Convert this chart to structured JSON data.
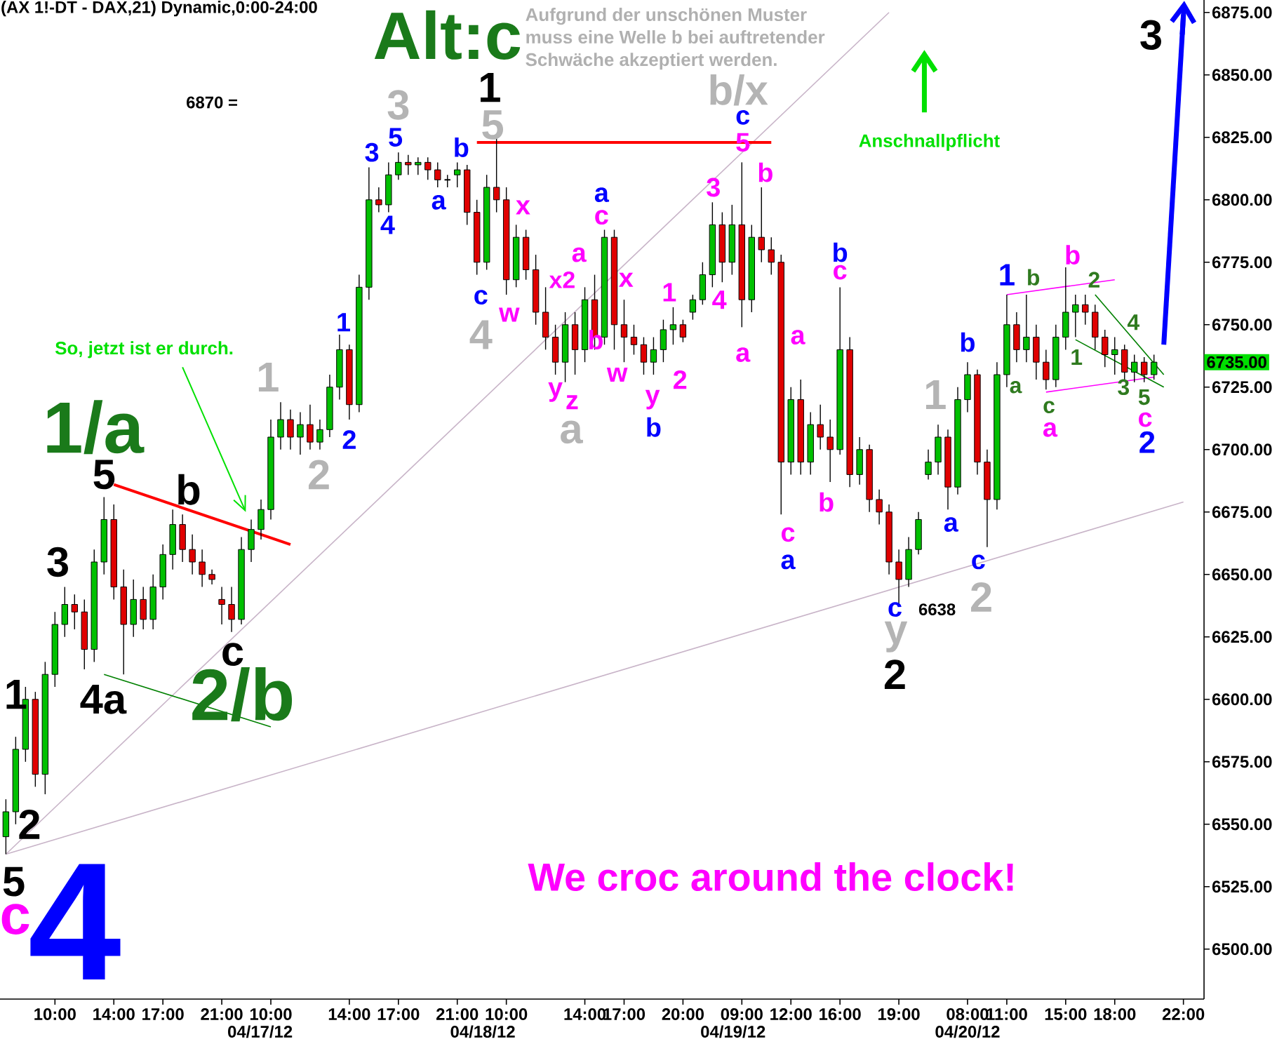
{
  "chart_data": {
    "type": "candlestick",
    "title": "(AX 1!-DT - DAX,21) Dynamic,0:00-24:00",
    "categories": [
      null,
      null,
      null,
      null,
      null,
      "10:00",
      null,
      null,
      null,
      null,
      null,
      "14:00",
      null,
      null,
      null,
      null,
      "17:00",
      null,
      null,
      null,
      null,
      null,
      "21:00",
      null,
      null,
      null,
      null,
      "10:00",
      null,
      null,
      null,
      null,
      null,
      null,
      null,
      "14:00",
      null,
      null,
      null,
      null,
      "17:00",
      null,
      null,
      null,
      null,
      null,
      "21:00",
      null,
      null,
      null,
      null,
      "10:00",
      null,
      null,
      null,
      null,
      null,
      null,
      null,
      "14:00",
      null,
      null,
      null,
      "17:00",
      null,
      null,
      null,
      null,
      null,
      "20:00",
      null,
      null,
      null,
      null,
      null,
      "09:00",
      null,
      null,
      null,
      null,
      "12:00",
      null,
      null,
      null,
      null,
      "16:00",
      null,
      null,
      null,
      null,
      null,
      "19:00",
      null,
      null,
      null,
      null,
      null,
      null,
      "08:00",
      null,
      null,
      null,
      "11:00",
      null,
      null,
      null,
      null,
      null,
      "15:00",
      null,
      null,
      null,
      null,
      "18:00",
      null,
      null,
      null,
      null,
      null,
      null,
      "22:00"
    ],
    "ohlc": [
      [
        6545,
        6560,
        6538,
        6555
      ],
      [
        6555,
        6585,
        6550,
        6580
      ],
      [
        6580,
        6605,
        6575,
        6600
      ],
      [
        6600,
        6603,
        6565,
        6570
      ],
      [
        6570,
        6615,
        6562,
        6610
      ],
      [
        6610,
        6635,
        6605,
        6630
      ],
      [
        6630,
        6645,
        6625,
        6638
      ],
      [
        6638,
        6642,
        6628,
        6635
      ],
      [
        6635,
        6640,
        6612,
        6620
      ],
      [
        6620,
        6660,
        6615,
        6655
      ],
      [
        6655,
        6681,
        6650,
        6672
      ],
      [
        6672,
        6678,
        6640,
        6645
      ],
      [
        6645,
        6652,
        6610,
        6630
      ],
      [
        6630,
        6648,
        6625,
        6640
      ],
      [
        6640,
        6645,
        6628,
        6632
      ],
      [
        6632,
        6650,
        6628,
        6645
      ],
      [
        6645,
        6662,
        6640,
        6658
      ],
      [
        6658,
        6676,
        6652,
        6670
      ],
      [
        6670,
        6674,
        6655,
        6660
      ],
      [
        6660,
        6666,
        6650,
        6655
      ],
      [
        6655,
        6660,
        6645,
        6650
      ],
      [
        6650,
        6652,
        6646,
        6648
      ],
      [
        6640,
        6645,
        6630,
        6638
      ],
      [
        6638,
        6645,
        6627,
        6632
      ],
      [
        6632,
        6665,
        6630,
        6660
      ],
      [
        6660,
        6672,
        6655,
        6668
      ],
      [
        6668,
        6680,
        6664,
        6676
      ],
      [
        6676,
        6712,
        6672,
        6705
      ],
      [
        6705,
        6719,
        6700,
        6712
      ],
      [
        6712,
        6716,
        6700,
        6705
      ],
      [
        6705,
        6715,
        6698,
        6710
      ],
      [
        6710,
        6718,
        6700,
        6703
      ],
      [
        6703,
        6712,
        6700,
        6708
      ],
      [
        6708,
        6730,
        6705,
        6725
      ],
      [
        6725,
        6746,
        6720,
        6740
      ],
      [
        6740,
        6742,
        6712,
        6718
      ],
      [
        6718,
        6770,
        6715,
        6765
      ],
      [
        6765,
        6813,
        6760,
        6800
      ],
      [
        6800,
        6805,
        6795,
        6798
      ],
      [
        6798,
        6815,
        6795,
        6810
      ],
      [
        6810,
        6819,
        6808,
        6815
      ],
      [
        6815,
        6818,
        6810,
        6814
      ],
      [
        6814,
        6817,
        6810,
        6815
      ],
      [
        6815,
        6817,
        6808,
        6812
      ],
      [
        6812,
        6815,
        6805,
        6808
      ],
      [
        6808,
        6810,
        6805,
        6808
      ],
      [
        6810,
        6815,
        6805,
        6812
      ],
      [
        6812,
        6814,
        6790,
        6795
      ],
      [
        6795,
        6800,
        6770,
        6775
      ],
      [
        6775,
        6810,
        6772,
        6805
      ],
      [
        6805,
        6825,
        6795,
        6800
      ],
      [
        6800,
        6805,
        6762,
        6768
      ],
      [
        6768,
        6790,
        6765,
        6785
      ],
      [
        6785,
        6788,
        6768,
        6772
      ],
      [
        6772,
        6778,
        6750,
        6755
      ],
      [
        6755,
        6765,
        6740,
        6745
      ],
      [
        6745,
        6750,
        6730,
        6735
      ],
      [
        6735,
        6755,
        6727,
        6750
      ],
      [
        6750,
        6755,
        6730,
        6740
      ],
      [
        6740,
        6765,
        6735,
        6760
      ],
      [
        6760,
        6770,
        6740,
        6745
      ],
      [
        6745,
        6788,
        6742,
        6785
      ],
      [
        6785,
        6788,
        6740,
        6750
      ],
      [
        6750,
        6760,
        6735,
        6745
      ],
      [
        6745,
        6750,
        6738,
        6742
      ],
      [
        6742,
        6745,
        6730,
        6735
      ],
      [
        6735,
        6745,
        6730,
        6740
      ],
      [
        6740,
        6752,
        6735,
        6748
      ],
      [
        6748,
        6757,
        6742,
        6750
      ],
      [
        6750,
        6752,
        6743,
        6745
      ],
      [
        6755,
        6762,
        6752,
        6760
      ],
      [
        6760,
        6775,
        6758,
        6770
      ],
      [
        6770,
        6799,
        6765,
        6790
      ],
      [
        6790,
        6795,
        6767,
        6775
      ],
      [
        6775,
        6798,
        6770,
        6790
      ],
      [
        6790,
        6815,
        6749,
        6760
      ],
      [
        6760,
        6790,
        6755,
        6785
      ],
      [
        6785,
        6805,
        6775,
        6780
      ],
      [
        6780,
        6785,
        6770,
        6775
      ],
      [
        6775,
        6778,
        6674,
        6695
      ],
      [
        6695,
        6725,
        6690,
        6720
      ],
      [
        6720,
        6728,
        6690,
        6695
      ],
      [
        6695,
        6715,
        6690,
        6710
      ],
      [
        6710,
        6718,
        6700,
        6705
      ],
      [
        6705,
        6712,
        6687,
        6700
      ],
      [
        6700,
        6765,
        6698,
        6740
      ],
      [
        6740,
        6745,
        6685,
        6690
      ],
      [
        6690,
        6705,
        6686,
        6700
      ],
      [
        6700,
        6702,
        6675,
        6680
      ],
      [
        6680,
        6684,
        6670,
        6675
      ],
      [
        6675,
        6678,
        6650,
        6655
      ],
      [
        6655,
        6660,
        6638,
        6648
      ],
      [
        6648,
        6665,
        6645,
        6660
      ],
      [
        6660,
        6675,
        6658,
        6672
      ],
      [
        6690,
        6700,
        6688,
        6695
      ],
      [
        6695,
        6710,
        6690,
        6705
      ],
      [
        6705,
        6708,
        6676,
        6685
      ],
      [
        6685,
        6725,
        6682,
        6720
      ],
      [
        6720,
        6735,
        6715,
        6730
      ],
      [
        6730,
        6732,
        6690,
        6695
      ],
      [
        6695,
        6700,
        6661,
        6680
      ],
      [
        6680,
        6735,
        6676,
        6730
      ],
      [
        6730,
        6762,
        6725,
        6750
      ],
      [
        6750,
        6755,
        6735,
        6740
      ],
      [
        6740,
        6762,
        6735,
        6745
      ],
      [
        6745,
        6750,
        6728,
        6735
      ],
      [
        6735,
        6740,
        6724,
        6728
      ],
      [
        6728,
        6750,
        6725,
        6745
      ],
      [
        6745,
        6773,
        6740,
        6755
      ],
      [
        6755,
        6762,
        6745,
        6758
      ],
      [
        6758,
        6762,
        6750,
        6755
      ],
      [
        6755,
        6758,
        6740,
        6745
      ],
      [
        6745,
        6748,
        6733,
        6738
      ],
      [
        6738,
        6745,
        6730,
        6740
      ],
      [
        6740,
        6742,
        6728,
        6731
      ],
      [
        6731,
        6738,
        6727,
        6735
      ],
      [
        6735,
        6737,
        6727,
        6730
      ],
      [
        6730,
        6738,
        6728,
        6735
      ],
      null,
      null,
      null
    ],
    "ylim": [
      6480,
      6880
    ],
    "yticks": [
      {
        "value": 6500,
        "label": "6500.00"
      },
      {
        "value": 6525,
        "label": "6525.00"
      },
      {
        "value": 6550,
        "label": "6550.00"
      },
      {
        "value": 6575,
        "label": "6575.00"
      },
      {
        "value": 6600,
        "label": "6600.00"
      },
      {
        "value": 6625,
        "label": "6625.00"
      },
      {
        "value": 6650,
        "label": "6650.00"
      },
      {
        "value": 6675,
        "label": "6675.00"
      },
      {
        "value": 6700,
        "label": "6700.00"
      },
      {
        "value": 6725,
        "label": "6725.00"
      },
      {
        "value": 6750,
        "label": "6750.00"
      },
      {
        "value": 6775,
        "label": "6775.00"
      },
      {
        "value": 6800,
        "label": "6800.00"
      },
      {
        "value": 6825,
        "label": "6825.00"
      },
      {
        "value": 6850,
        "label": "6850.00"
      },
      {
        "value": 6875,
        "label": "6875.00"
      }
    ],
    "series": [
      {
        "type": "line",
        "color": "#c8b4c8",
        "values": [
          6538,
          null,
          null,
          null,
          null,
          null,
          null,
          null,
          null,
          null,
          null,
          null,
          null,
          null,
          null,
          null,
          null,
          null,
          null,
          null,
          null,
          null,
          null,
          null,
          null,
          null,
          null,
          null,
          null,
          null,
          null,
          null,
          null,
          null,
          null,
          null,
          null,
          null,
          null,
          null,
          null,
          null,
          null,
          null,
          null,
          null,
          null,
          null,
          null,
          null,
          null,
          null,
          null,
          null,
          null,
          null,
          null,
          null,
          null,
          null,
          null,
          null,
          null,
          null,
          null,
          null,
          null,
          null,
          null,
          null,
          null,
          null,
          null,
          null,
          null,
          null,
          null,
          null,
          null,
          null,
          null,
          null,
          null,
          null,
          null,
          null,
          null,
          null,
          null,
          null,
          6875,
          null,
          null,
          null,
          null,
          null,
          null,
          null,
          null,
          null,
          null,
          null,
          null,
          null,
          null,
          null,
          null,
          null,
          null,
          null,
          null,
          null,
          null,
          null,
          null,
          null,
          null,
          null,
          null,
          null,
          null
        ]
      },
      {
        "type": "line",
        "color": "#c8b4c8",
        "values": [
          6538,
          null,
          null,
          null,
          null,
          null,
          null,
          null,
          null,
          null,
          null,
          null,
          null,
          null,
          null,
          null,
          null,
          null,
          null,
          null,
          null,
          null,
          null,
          null,
          null,
          null,
          null,
          null,
          null,
          null,
          null,
          null,
          null,
          null,
          null,
          null,
          null,
          null,
          null,
          null,
          null,
          null,
          null,
          null,
          null,
          null,
          null,
          null,
          null,
          null,
          null,
          null,
          null,
          null,
          null,
          null,
          null,
          null,
          null,
          null,
          null,
          null,
          null,
          null,
          null,
          null,
          null,
          null,
          null,
          null,
          null,
          null,
          null,
          null,
          null,
          null,
          null,
          null,
          null,
          null,
          null,
          null,
          null,
          null,
          null,
          null,
          null,
          null,
          null,
          null,
          null,
          null,
          null,
          null,
          null,
          null,
          null,
          null,
          null,
          null,
          null,
          null,
          null,
          null,
          null,
          null,
          null,
          null,
          null,
          null,
          null,
          null,
          null,
          null,
          null,
          null,
          null,
          null,
          null,
          null,
          6679
        ]
      },
      {
        "type": "line",
        "color": "#ff0000",
        "values": [
          null,
          null,
          null,
          null,
          null,
          null,
          null,
          null,
          null,
          null,
          null,
          null,
          null,
          null,
          null,
          null,
          null,
          null,
          null,
          null,
          null,
          null,
          null,
          null,
          null,
          null,
          null,
          null,
          null,
          null,
          null,
          null,
          null,
          null,
          null,
          null,
          null,
          null,
          null,
          null,
          null,
          null,
          null,
          null,
          null,
          null,
          null,
          null,
          6823,
          null,
          null,
          null,
          null,
          null,
          null,
          null,
          null,
          null,
          null,
          null,
          null,
          null,
          null,
          null,
          null,
          null,
          null,
          null,
          null,
          null,
          null,
          null,
          null,
          null,
          null,
          null,
          null,
          null,
          6823,
          null,
          null,
          null,
          null,
          null,
          null,
          null,
          null,
          null,
          null,
          null,
          null,
          null,
          null,
          null,
          null,
          null,
          null,
          null,
          null,
          null,
          null,
          null,
          null,
          null,
          null,
          null,
          null,
          null,
          null,
          null,
          null,
          null,
          null,
          null,
          null,
          null,
          null,
          null,
          null,
          null,
          null
        ]
      },
      {
        "type": "line",
        "color": "#ff0000",
        "values": [
          null,
          null,
          null,
          null,
          null,
          null,
          null,
          null,
          null,
          null,
          null,
          6686,
          null,
          null,
          null,
          null,
          null,
          null,
          null,
          null,
          null,
          null,
          null,
          null,
          null,
          null,
          null,
          null,
          null,
          6662,
          null,
          null,
          null,
          null,
          null,
          null,
          null,
          null,
          null,
          null,
          null,
          null,
          null,
          null,
          null,
          null,
          null,
          null,
          null,
          null,
          null,
          null,
          null,
          null,
          null,
          null,
          null,
          null,
          null,
          null,
          null,
          null,
          null,
          null,
          null,
          null,
          null,
          null,
          null,
          null,
          null,
          null,
          null,
          null,
          null,
          null,
          null,
          null,
          null,
          null,
          null,
          null,
          null,
          null,
          null,
          null,
          null,
          null,
          null,
          null,
          null,
          null,
          null,
          null,
          null,
          null,
          null,
          null,
          null,
          null,
          null,
          null,
          null,
          null,
          null,
          null,
          null,
          null,
          null,
          null,
          null,
          null,
          null,
          null,
          null,
          null,
          null,
          null,
          null,
          null,
          null
        ]
      },
      {
        "type": "line",
        "color": "#008000",
        "values": [
          null,
          null,
          null,
          null,
          null,
          null,
          null,
          null,
          null,
          null,
          6610,
          null,
          null,
          null,
          null,
          null,
          null,
          null,
          null,
          null,
          null,
          null,
          null,
          null,
          null,
          null,
          null,
          6589,
          null,
          null,
          null,
          null,
          null,
          null,
          null,
          null,
          null,
          null,
          null,
          null,
          null,
          null,
          null,
          null,
          null,
          null,
          null,
          null,
          null,
          null,
          null,
          null,
          null,
          null,
          null,
          null,
          null,
          null,
          null,
          null,
          null,
          null,
          null,
          null,
          null,
          null,
          null,
          null,
          null,
          null,
          null,
          null,
          null,
          null,
          null,
          null,
          null,
          null,
          null,
          null,
          null,
          null,
          null,
          null,
          null,
          null,
          null,
          null,
          null,
          null,
          null,
          null,
          null,
          null,
          null,
          null,
          null,
          null,
          null,
          null,
          null,
          null,
          null,
          null,
          null,
          null,
          null,
          null,
          null,
          null,
          null,
          null,
          null,
          null,
          null,
          null,
          null,
          null,
          null,
          null,
          null
        ]
      },
      {
        "type": "line",
        "color": "#ff00ff",
        "values": [
          null,
          null,
          null,
          null,
          null,
          null,
          null,
          null,
          null,
          null,
          null,
          null,
          null,
          null,
          null,
          null,
          null,
          null,
          null,
          null,
          null,
          null,
          null,
          null,
          null,
          null,
          null,
          null,
          null,
          null,
          null,
          null,
          null,
          null,
          null,
          null,
          null,
          null,
          null,
          null,
          null,
          null,
          null,
          null,
          null,
          null,
          null,
          null,
          null,
          null,
          null,
          null,
          null,
          null,
          null,
          null,
          null,
          null,
          null,
          null,
          null,
          null,
          null,
          null,
          null,
          null,
          null,
          null,
          null,
          null,
          null,
          null,
          null,
          null,
          null,
          null,
          null,
          null,
          null,
          null,
          null,
          null,
          null,
          null,
          null,
          null,
          null,
          null,
          null,
          null,
          null,
          null,
          null,
          null,
          null,
          null,
          null,
          null,
          null,
          null,
          null,
          null,
          6762,
          null,
          null,
          null,
          null,
          null,
          null,
          null,
          null,
          null,
          null,
          6768,
          null,
          null,
          null,
          null,
          null,
          null,
          null
        ]
      },
      {
        "type": "line",
        "color": "#ff00ff",
        "values": [
          null,
          null,
          null,
          null,
          null,
          null,
          null,
          null,
          null,
          null,
          null,
          null,
          null,
          null,
          null,
          null,
          null,
          null,
          null,
          null,
          null,
          null,
          null,
          null,
          null,
          null,
          null,
          null,
          null,
          null,
          null,
          null,
          null,
          null,
          null,
          null,
          null,
          null,
          null,
          null,
          null,
          null,
          null,
          null,
          null,
          null,
          null,
          null,
          null,
          null,
          null,
          null,
          null,
          null,
          null,
          null,
          null,
          null,
          null,
          null,
          null,
          null,
          null,
          null,
          null,
          null,
          null,
          null,
          null,
          null,
          null,
          null,
          null,
          null,
          null,
          null,
          null,
          null,
          null,
          null,
          null,
          null,
          null,
          null,
          null,
          null,
          null,
          null,
          null,
          null,
          null,
          null,
          null,
          null,
          null,
          null,
          null,
          null,
          null,
          null,
          null,
          null,
          null,
          null,
          null,
          null,
          6723,
          null,
          null,
          null,
          null,
          null,
          null,
          null,
          null,
          null,
          null,
          6729,
          null,
          null,
          null
        ]
      },
      {
        "type": "line",
        "color": "#008000",
        "values": [
          null,
          null,
          null,
          null,
          null,
          null,
          null,
          null,
          null,
          null,
          null,
          null,
          null,
          null,
          null,
          null,
          null,
          null,
          null,
          null,
          null,
          null,
          null,
          null,
          null,
          null,
          null,
          null,
          null,
          null,
          null,
          null,
          null,
          null,
          null,
          null,
          null,
          null,
          null,
          null,
          null,
          null,
          null,
          null,
          null,
          null,
          null,
          null,
          null,
          null,
          null,
          null,
          null,
          null,
          null,
          null,
          null,
          null,
          null,
          null,
          null,
          null,
          null,
          null,
          null,
          null,
          null,
          null,
          null,
          null,
          null,
          null,
          null,
          null,
          null,
          null,
          null,
          null,
          null,
          null,
          null,
          null,
          null,
          null,
          null,
          null,
          null,
          null,
          null,
          null,
          null,
          null,
          null,
          null,
          null,
          null,
          null,
          null,
          null,
          null,
          null,
          null,
          null,
          null,
          null,
          null,
          null,
          null,
          null,
          null,
          null,
          6762,
          null,
          null,
          null,
          null,
          null,
          null,
          6730,
          null,
          null
        ]
      },
      {
        "type": "line",
        "color": "#008000",
        "values": [
          null,
          null,
          null,
          null,
          null,
          null,
          null,
          null,
          null,
          null,
          null,
          null,
          null,
          null,
          null,
          null,
          null,
          null,
          null,
          null,
          null,
          null,
          null,
          null,
          null,
          null,
          null,
          null,
          null,
          null,
          null,
          null,
          null,
          null,
          null,
          null,
          null,
          null,
          null,
          null,
          null,
          null,
          null,
          null,
          null,
          null,
          null,
          null,
          null,
          null,
          null,
          null,
          null,
          null,
          null,
          null,
          null,
          null,
          null,
          null,
          null,
          null,
          null,
          null,
          null,
          null,
          null,
          null,
          null,
          null,
          null,
          null,
          null,
          null,
          null,
          null,
          null,
          null,
          null,
          null,
          null,
          null,
          null,
          null,
          null,
          null,
          null,
          null,
          null,
          null,
          null,
          null,
          null,
          null,
          null,
          null,
          null,
          null,
          null,
          null,
          null,
          null,
          null,
          null,
          null,
          null,
          null,
          null,
          null,
          6744,
          null,
          null,
          null,
          null,
          null,
          null,
          null,
          null,
          6725,
          null,
          null
        ]
      },
      {
        "type": "line",
        "color": "#0000ff",
        "values": [
          null,
          null,
          null,
          null,
          null,
          null,
          null,
          null,
          null,
          null,
          null,
          null,
          null,
          null,
          null,
          null,
          null,
          null,
          null,
          null,
          null,
          null,
          null,
          null,
          null,
          null,
          null,
          null,
          null,
          null,
          null,
          null,
          null,
          null,
          null,
          null,
          null,
          null,
          null,
          null,
          null,
          null,
          null,
          null,
          null,
          null,
          null,
          null,
          null,
          null,
          null,
          null,
          null,
          null,
          null,
          null,
          null,
          null,
          null,
          null,
          null,
          null,
          null,
          null,
          null,
          null,
          null,
          null,
          null,
          null,
          null,
          null,
          null,
          null,
          null,
          null,
          null,
          null,
          null,
          null,
          null,
          null,
          null,
          null,
          null,
          null,
          null,
          null,
          null,
          null,
          null,
          null,
          null,
          null,
          null,
          null,
          null,
          null,
          null,
          null,
          null,
          null,
          null,
          null,
          null,
          null,
          null,
          null,
          null,
          null,
          null,
          null,
          null,
          null,
          null,
          null,
          null,
          null,
          6742,
          null,
          6874
        ]
      }
    ],
    "annotations": [
      "Alt:c",
      "Aufgrund der unschönen Muster",
      "muss eine Welle b bei auftretender",
      "Schwäche akzeptiert werden.",
      "6870 =",
      "Anschnallpflicht",
      "So, jetzt ist er durch.",
      "We croc around the clock!",
      "6638",
      "6735.00",
      "4",
      "c",
      "5",
      "2",
      "1",
      "3",
      "4a",
      "5",
      "b",
      "c",
      "1/a",
      "2/b",
      "1",
      "2",
      "1",
      "2",
      "3",
      "3",
      "5",
      "4",
      "a",
      "1",
      "5",
      "b",
      "c",
      "4",
      "x",
      "w",
      "x2",
      "a",
      "y",
      "z",
      "a",
      "a",
      "c",
      "b",
      "x",
      "w",
      "y",
      "b",
      "1",
      "2",
      "3",
      "4",
      "b/x",
      "c",
      "5",
      "b",
      "a",
      "a",
      "c",
      "a",
      "b",
      "b",
      "c",
      "c",
      "y",
      "2",
      "1",
      "a",
      "b",
      "c",
      "2",
      "1",
      "b",
      "a",
      "c",
      "a",
      "b",
      {
        "text": "2",
        "y": 6768
      },
      "1",
      "4",
      "3",
      "5",
      "c",
      "2",
      "3",
      "04/17/12",
      "04/18/12",
      "04/19/12",
      "04/20/12"
    ],
    "grid": false
  }
}
